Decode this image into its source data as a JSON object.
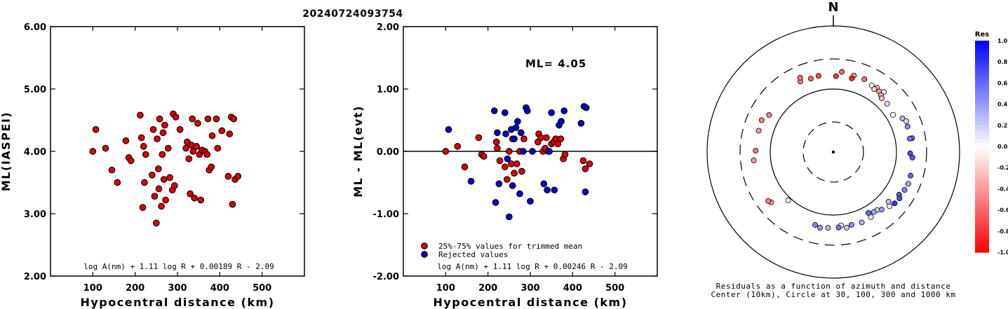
{
  "title": "20240724093754",
  "chart_data": [
    {
      "type": "scatter",
      "name": "amplitude-ml",
      "xlabel": "Hypocentral distance (km)",
      "ylabel": "ML(IASPEI)",
      "xlim": [
        0,
        600
      ],
      "ylim": [
        2.0,
        6.0
      ],
      "xticks": [
        "100",
        "200",
        "300",
        "400",
        "500"
      ],
      "yticks": [
        "2.00",
        "3.00",
        "4.00",
        "5.00",
        "6.00"
      ],
      "formula": "log A(nm) + 1.11 log R + 0.00189 R - 2.09",
      "color": "#dd0000",
      "points": [
        [
          100,
          4.0
        ],
        [
          107,
          4.35
        ],
        [
          130,
          4.05
        ],
        [
          145,
          3.7
        ],
        [
          158,
          3.5
        ],
        [
          178,
          4.17
        ],
        [
          185,
          3.9
        ],
        [
          190,
          3.85
        ],
        [
          212,
          4.58
        ],
        [
          215,
          4.22
        ],
        [
          220,
          4.08
        ],
        [
          222,
          3.5
        ],
        [
          225,
          3.95
        ],
        [
          218,
          3.1
        ],
        [
          240,
          3.62
        ],
        [
          243,
          4.35
        ],
        [
          246,
          3.28
        ],
        [
          250,
          2.85
        ],
        [
          252,
          4.2
        ],
        [
          255,
          3.72
        ],
        [
          256,
          3.4
        ],
        [
          258,
          4.52
        ],
        [
          262,
          3.12
        ],
        [
          264,
          3.95
        ],
        [
          266,
          4.3
        ],
        [
          268,
          3.55
        ],
        [
          270,
          4.42
        ],
        [
          272,
          3.22
        ],
        [
          278,
          4.05
        ],
        [
          282,
          3.58
        ],
        [
          288,
          3.38
        ],
        [
          290,
          4.6
        ],
        [
          293,
          3.45
        ],
        [
          296,
          4.55
        ],
        [
          306,
          4.35
        ],
        [
          320,
          4.05
        ],
        [
          323,
          4.15
        ],
        [
          327,
          3.88
        ],
        [
          330,
          3.32
        ],
        [
          333,
          4.1
        ],
        [
          335,
          4.52
        ],
        [
          337,
          4.0
        ],
        [
          340,
          3.25
        ],
        [
          345,
          4.08
        ],
        [
          348,
          4.45
        ],
        [
          352,
          3.95
        ],
        [
          355,
          3.22
        ],
        [
          358,
          4.02
        ],
        [
          365,
          4.0
        ],
        [
          370,
          3.95
        ],
        [
          372,
          4.52
        ],
        [
          375,
          3.7
        ],
        [
          380,
          3.75
        ],
        [
          382,
          4.25
        ],
        [
          392,
          4.52
        ],
        [
          395,
          4.05
        ],
        [
          405,
          4.33
        ],
        [
          420,
          3.6
        ],
        [
          423,
          4.28
        ],
        [
          427,
          4.55
        ],
        [
          430,
          3.15
        ],
        [
          433,
          4.52
        ],
        [
          436,
          3.55
        ],
        [
          443,
          3.6
        ]
      ]
    },
    {
      "type": "scatter",
      "name": "ml-residuals",
      "xlabel": "Hypocentral distance (km)",
      "ylabel": "ML - ML(evt)",
      "xlim": [
        0,
        600
      ],
      "ylim": [
        -2.0,
        2.0
      ],
      "xticks": [
        "100",
        "200",
        "300",
        "400",
        "500"
      ],
      "yticks": [
        "-2.00",
        "-1.00",
        "0.00",
        "1.00",
        "2.00"
      ],
      "annotation": "ML= 4.05",
      "formula": "log A(nm) + 1.11 log R + 0.00246 R - 2.09",
      "legend": [
        {
          "label": "25%-75% values for trimmed mean",
          "color": "#dd0000"
        },
        {
          "label": "Rejected values",
          "color": "#0000cc"
        }
      ],
      "series": [
        {
          "name": "25%-75% values for trimmed mean",
          "color": "#dd0000",
          "points": [
            [
              100,
              0.0
            ],
            [
              128,
              0.08
            ],
            [
              145,
              -0.25
            ],
            [
              178,
              0.22
            ],
            [
              185,
              -0.05
            ],
            [
              190,
              -0.08
            ],
            [
              220,
              0.15
            ],
            [
              222,
              0.05
            ],
            [
              228,
              -0.15
            ],
            [
              240,
              -0.25
            ],
            [
              245,
              -0.45
            ],
            [
              250,
              0.0
            ],
            [
              255,
              -0.2
            ],
            [
              258,
              0.2
            ],
            [
              262,
              -0.35
            ],
            [
              268,
              -0.2
            ],
            [
              275,
              0.0
            ],
            [
              280,
              -0.32
            ],
            [
              285,
              0.2
            ],
            [
              318,
              0.15
            ],
            [
              320,
              0.28
            ],
            [
              325,
              0.22
            ],
            [
              330,
              0.0
            ],
            [
              335,
              0.05
            ],
            [
              338,
              0.22
            ],
            [
              342,
              0.0
            ],
            [
              350,
              0.12
            ],
            [
              355,
              0.15
            ],
            [
              360,
              0.2
            ],
            [
              365,
              0.12
            ],
            [
              372,
              0.2
            ],
            [
              378,
              -0.12
            ],
            [
              382,
              -0.05
            ],
            [
              425,
              -0.15
            ],
            [
              430,
              -0.28
            ],
            [
              440,
              -0.2
            ]
          ]
        },
        {
          "name": "Rejected values",
          "color": "#0000cc",
          "points": [
            [
              107,
              0.35
            ],
            [
              160,
              -0.48
            ],
            [
              215,
              0.65
            ],
            [
              218,
              -0.82
            ],
            [
              222,
              0.3
            ],
            [
              226,
              -0.52
            ],
            [
              240,
              0.62
            ],
            [
              242,
              0.28
            ],
            [
              246,
              -0.12
            ],
            [
              250,
              -1.05
            ],
            [
              255,
              0.35
            ],
            [
              258,
              -0.55
            ],
            [
              262,
              0.2
            ],
            [
              266,
              0.38
            ],
            [
              270,
              0.48
            ],
            [
              275,
              -0.68
            ],
            [
              278,
              0.3
            ],
            [
              283,
              0.0
            ],
            [
              290,
              0.7
            ],
            [
              293,
              0.65
            ],
            [
              300,
              -0.8
            ],
            [
              305,
              0.0
            ],
            [
              332,
              -0.52
            ],
            [
              340,
              -0.62
            ],
            [
              345,
              0.0
            ],
            [
              350,
              0.62
            ],
            [
              357,
              -0.62
            ],
            [
              368,
              0.42
            ],
            [
              373,
              0.48
            ],
            [
              380,
              0.65
            ],
            [
              420,
              0.45
            ],
            [
              427,
              0.72
            ],
            [
              432,
              0.7
            ],
            [
              430,
              -0.65
            ]
          ]
        }
      ]
    },
    {
      "type": "scatter",
      "name": "azimuth-distance-residuals",
      "north_label": "N",
      "caption_line1": "Residuals as a function of azimuth and distance",
      "caption_line2": "Center (10km), Circle at 30, 100, 300 and 1000 km",
      "colorbar_title": "Res",
      "colorbar_ticks": [
        "1.0",
        "0.8",
        "0.6",
        "0.4",
        "0.2",
        "0.0",
        "-0.2",
        "-0.4",
        "-0.6",
        "-0.8",
        "-1.0"
      ],
      "colorbar_range": [
        -1.0,
        1.0
      ],
      "stations": [
        {
          "az": 6,
          "dist_km": 190,
          "res": -0.6
        },
        {
          "az": 15,
          "dist_km": 180,
          "res": -0.45
        },
        {
          "az": 23,
          "dist_km": 180,
          "res": -0.55
        },
        {
          "az": 2,
          "dist_km": 160,
          "res": -0.8
        },
        {
          "az": 349,
          "dist_km": 170,
          "res": -0.7
        },
        {
          "az": 343,
          "dist_km": 165,
          "res": -0.6
        },
        {
          "az": 335,
          "dist_km": 172,
          "res": -0.5
        },
        {
          "az": 336,
          "dist_km": 195,
          "res": -0.55
        },
        {
          "az": 14,
          "dist_km": 160,
          "res": -0.85
        },
        {
          "az": 30,
          "dist_km": 165,
          "res": -0.05
        },
        {
          "az": 34,
          "dist_km": 170,
          "res": -0.3
        },
        {
          "az": 37,
          "dist_km": 160,
          "res": -0.4
        },
        {
          "az": 40,
          "dist_km": 175,
          "res": -0.1
        },
        {
          "az": 33,
          "dist_km": 155,
          "res": -0.2
        },
        {
          "az": 40,
          "dist_km": 150,
          "res": -0.35
        },
        {
          "az": 42,
          "dist_km": 140,
          "res": -0.25
        },
        {
          "az": 48,
          "dist_km": 140,
          "res": 0.15
        },
        {
          "az": 58,
          "dist_km": 130,
          "res": 0.0
        },
        {
          "az": 64,
          "dist_km": 165,
          "res": 0.3
        },
        {
          "az": 67,
          "dist_km": 180,
          "res": 0.15
        },
        {
          "az": 71,
          "dist_km": 175,
          "res": 0.45
        },
        {
          "az": 80,
          "dist_km": 185,
          "res": 0.6
        },
        {
          "az": 80,
          "dist_km": 170,
          "res": 0.55
        },
        {
          "az": 91,
          "dist_km": 165,
          "res": 0.7
        },
        {
          "az": 94,
          "dist_km": 180,
          "res": 0.65
        },
        {
          "az": 107,
          "dist_km": 190,
          "res": 0.6
        },
        {
          "az": 113,
          "dist_km": 195,
          "res": 0.35
        },
        {
          "az": 118,
          "dist_km": 190,
          "res": 0.5
        },
        {
          "az": 123,
          "dist_km": 175,
          "res": 0.65
        },
        {
          "az": 125,
          "dist_km": 190,
          "res": 0.7
        },
        {
          "az": 130,
          "dist_km": 185,
          "res": 0.8
        },
        {
          "az": 134,
          "dist_km": 172,
          "res": 0.05
        },
        {
          "az": 132,
          "dist_km": 150,
          "res": 0.25
        },
        {
          "az": 140,
          "dist_km": 155,
          "res": 0.4
        },
        {
          "az": 143,
          "dist_km": 142,
          "res": 0.2
        },
        {
          "az": 146,
          "dist_km": 140,
          "res": 0.35
        },
        {
          "az": 150,
          "dist_km": 155,
          "res": 0.1
        },
        {
          "az": 150,
          "dist_km": 130,
          "res": 0.6
        },
        {
          "az": 158,
          "dist_km": 160,
          "res": 0.3
        },
        {
          "az": 166,
          "dist_km": 155,
          "res": 0.45
        },
        {
          "az": 170,
          "dist_km": 165,
          "res": 0.2
        },
        {
          "az": 174,
          "dist_km": 148,
          "res": 0.05
        },
        {
          "az": 176,
          "dist_km": 158,
          "res": 0.55
        },
        {
          "az": 184,
          "dist_km": 160,
          "res": 0.3
        },
        {
          "az": 190,
          "dist_km": 165,
          "res": 0.4
        },
        {
          "az": 194,
          "dist_km": 155,
          "res": 0.5
        },
        {
          "az": 223,
          "dist_km": 112,
          "res": 0.0
        },
        {
          "az": 231,
          "dist_km": 185,
          "res": -0.4
        },
        {
          "az": 233,
          "dist_km": 195,
          "res": -0.5
        },
        {
          "az": 264,
          "dist_km": 185,
          "res": -0.4
        },
        {
          "az": 271,
          "dist_km": 170,
          "res": -0.55
        },
        {
          "az": 286,
          "dist_km": 170,
          "res": -0.4
        },
        {
          "az": 294,
          "dist_km": 175,
          "res": -0.5
        },
        {
          "az": 300,
          "dist_km": 150,
          "res": -0.5
        }
      ]
    }
  ]
}
